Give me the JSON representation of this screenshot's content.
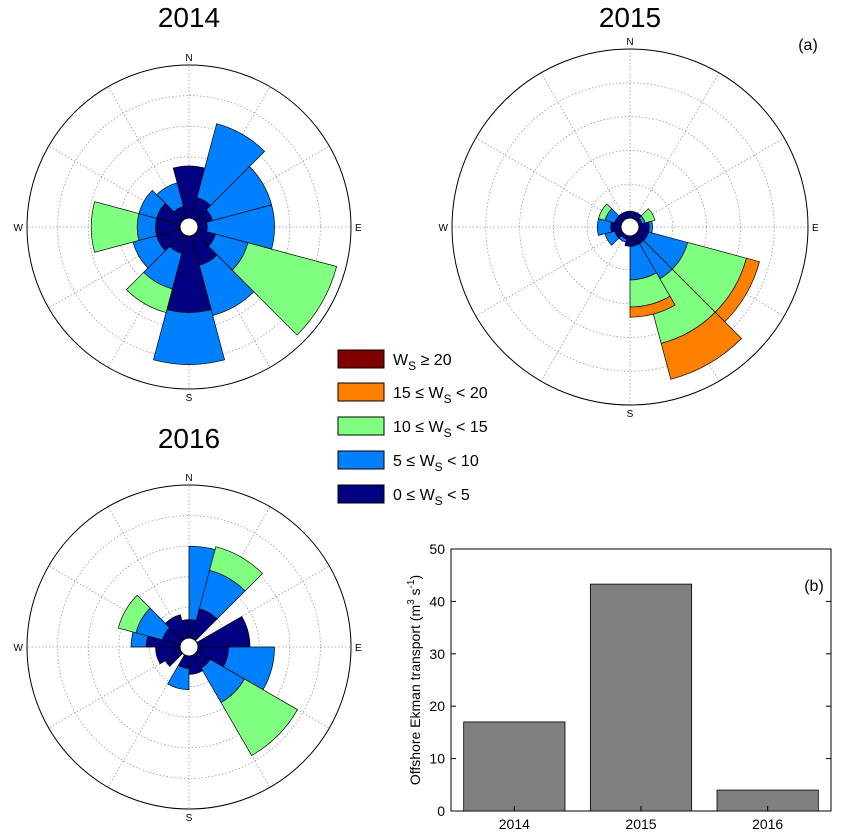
{
  "panel_labels": {
    "a": "(a)",
    "b": "(b)"
  },
  "compass_labels": {
    "n": "N",
    "e": "E",
    "s": "S",
    "w": "W"
  },
  "legend": [
    {
      "text": "W",
      "sub": "S",
      "rel": " ≥ 20",
      "color": "#800000"
    },
    {
      "text": "15 ≤ W",
      "sub": "S",
      "rel": " < 20",
      "color": "#ff8000"
    },
    {
      "text": "10 ≤ W",
      "sub": "S",
      "rel": " < 15",
      "color": "#80ff80"
    },
    {
      "text": "5 ≤ W",
      "sub": "S",
      "rel": " < 10",
      "color": "#0080ff"
    },
    {
      "text": "0 ≤ W",
      "sub": "S",
      "rel": " < 5",
      "color": "#000080"
    }
  ],
  "chart_data": [
    {
      "type": "rose",
      "title": "2014",
      "rings": 5,
      "max_radius": 5,
      "bin_colors": [
        "#000080",
        "#0080ff",
        "#80ff80",
        "#ff8000",
        "#800000"
      ],
      "sectors": [
        {
          "dir": 0,
          "c": [
            1.7,
            0,
            0,
            0,
            0
          ]
        },
        {
          "dir": 30,
          "c": [
            0.7,
            2.5,
            0,
            0,
            0
          ]
        },
        {
          "dir": 60,
          "c": [
            0.5,
            2.0,
            0,
            0,
            0
          ]
        },
        {
          "dir": 90,
          "c": [
            0.3,
            2.2,
            0,
            0,
            0
          ]
        },
        {
          "dir": 120,
          "c": [
            0.6,
            1.1,
            3.0,
            0,
            0
          ]
        },
        {
          "dir": 150,
          "c": [
            1.0,
            1.7,
            0,
            0,
            0
          ]
        },
        {
          "dir": 180,
          "c": [
            2.5,
            1.7,
            0,
            0,
            0
          ]
        },
        {
          "dir": 210,
          "c": [
            0.6,
            1.2,
            0.8,
            0,
            0
          ]
        },
        {
          "dir": 240,
          "c": [
            0.8,
            0.8,
            0,
            0,
            0
          ]
        },
        {
          "dir": 270,
          "c": [
            0.8,
            0.6,
            1.5,
            0,
            0
          ]
        },
        {
          "dir": 300,
          "c": [
            0.8,
            0.6,
            0,
            0,
            0
          ]
        },
        {
          "dir": 330,
          "c": [
            0.4,
            0.8,
            0,
            0,
            0
          ]
        }
      ]
    },
    {
      "type": "rose",
      "title": "2015",
      "rings": 5,
      "max_radius": 5,
      "bin_colors": [
        "#000080",
        "#0080ff",
        "#80ff80",
        "#ff8000",
        "#800000"
      ],
      "sectors": [
        {
          "dir": 0,
          "c": [
            0.2,
            0,
            0,
            0,
            0
          ]
        },
        {
          "dir": 30,
          "c": [
            0.2,
            0,
            0,
            0,
            0
          ]
        },
        {
          "dir": 60,
          "c": [
            0.1,
            0.1,
            0.3,
            0,
            0
          ]
        },
        {
          "dir": 90,
          "c": [
            0.3,
            0.1,
            0,
            0,
            0
          ]
        },
        {
          "dir": 120,
          "c": [
            0.3,
            1.2,
            1.8,
            0.4,
            0
          ]
        },
        {
          "dir": 150,
          "c": [
            0.3,
            1.2,
            1.8,
            1.1,
            0
          ]
        },
        {
          "dir": 165,
          "c": [
            0.3,
            1.0,
            0.8,
            0.3,
            0
          ]
        },
        {
          "dir": 180,
          "c": [
            0.3,
            0,
            0,
            0,
            0
          ]
        },
        {
          "dir": 210,
          "c": [
            0.1,
            0.1,
            0,
            0,
            0
          ]
        },
        {
          "dir": 240,
          "c": [
            0.2,
            0.3,
            0,
            0,
            0
          ]
        },
        {
          "dir": 270,
          "c": [
            0.3,
            0.4,
            0,
            0,
            0
          ]
        },
        {
          "dir": 300,
          "c": [
            0.2,
            0.3,
            0.2,
            0,
            0
          ]
        },
        {
          "dir": 330,
          "c": [
            0.2,
            0,
            0,
            0,
            0
          ]
        }
      ]
    },
    {
      "type": "rose",
      "title": "2016",
      "rings": 5,
      "max_radius": 5,
      "bin_colors": [
        "#000080",
        "#0080ff",
        "#80ff80",
        "#ff8000",
        "#800000"
      ],
      "sectors": [
        {
          "dir": 0,
          "c": [
            0.6,
            0,
            0,
            0,
            0
          ]
        },
        {
          "dir": 15,
          "c": [
            0.6,
            2.4,
            0,
            0,
            0
          ]
        },
        {
          "dir": 30,
          "c": [
            1.0,
            1.3,
            0.8,
            0,
            0
          ]
        },
        {
          "dir": 75,
          "c": [
            1.7,
            0,
            0,
            0,
            0
          ]
        },
        {
          "dir": 105,
          "c": [
            1.0,
            1.5,
            0,
            0,
            0
          ]
        },
        {
          "dir": 135,
          "c": [
            0.5,
            1.3,
            2.0,
            0,
            0
          ]
        },
        {
          "dir": 165,
          "c": [
            0.6,
            0,
            0,
            0,
            0
          ]
        },
        {
          "dir": 195,
          "c": [
            0.4,
            0.7,
            0,
            0,
            0
          ]
        },
        {
          "dir": 240,
          "c": [
            0.6,
            0,
            0,
            0,
            0
          ]
        },
        {
          "dir": 255,
          "c": [
            0.8,
            0,
            0,
            0,
            0
          ]
        },
        {
          "dir": 285,
          "c": [
            1.1,
            0.5,
            0,
            0,
            0
          ]
        },
        {
          "dir": 300,
          "c": [
            0.6,
            0.9,
            0.6,
            0,
            0
          ]
        },
        {
          "dir": 330,
          "c": [
            0.8,
            0,
            0,
            0,
            0
          ]
        }
      ]
    },
    {
      "type": "bar",
      "categories": [
        "2014",
        "2015",
        "2016"
      ],
      "values": [
        17,
        43.3,
        4
      ],
      "color": "#808080",
      "ylabel_main": "Offshore Ekman transport (m",
      "ylabel_sup1": "3",
      "ylabel_mid": " s",
      "ylabel_sup2": "-1",
      "ylabel_end": ")",
      "ylim": [
        0,
        50
      ],
      "yticks": [
        "0",
        "10",
        "20",
        "30",
        "40",
        "50"
      ]
    }
  ]
}
